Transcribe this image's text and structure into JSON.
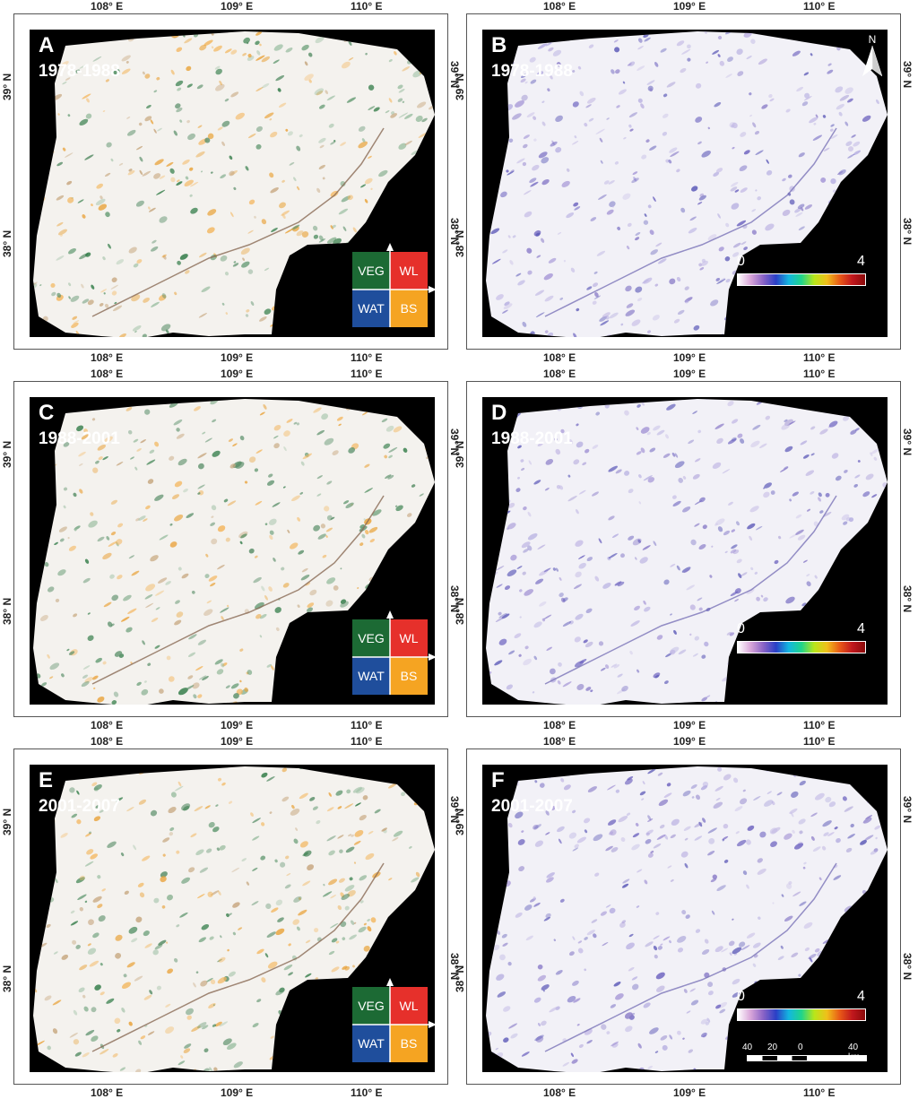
{
  "legend_quadrant": {
    "veg": "VEG",
    "wl": "WL",
    "wat": "WAT",
    "bs": "BS",
    "colors": {
      "veg": "#1c6a34",
      "wl": "#e6302b",
      "wat": "#1f4e9c",
      "bs": "#f5a422"
    }
  },
  "colorbar": {
    "min": "0",
    "max": "4"
  },
  "north": "N",
  "scalebar": {
    "labels": [
      "40",
      "20",
      "0",
      "40 km"
    ]
  },
  "axes": {
    "lon": [
      "108° E",
      "109° E",
      "110° E"
    ],
    "lat": [
      "39° N",
      "38° N"
    ]
  },
  "panels": [
    {
      "letter": "A",
      "years": "1978-1988",
      "kind": "quad"
    },
    {
      "letter": "B",
      "years": "1978-1988",
      "kind": "scale"
    },
    {
      "letter": "C",
      "years": "1988-2001",
      "kind": "quad"
    },
    {
      "letter": "D",
      "years": "1988-2001",
      "kind": "scale"
    },
    {
      "letter": "E",
      "years": "2001-2007",
      "kind": "quad"
    },
    {
      "letter": "F",
      "years": "2001-2007",
      "kind": "scale"
    }
  ]
}
